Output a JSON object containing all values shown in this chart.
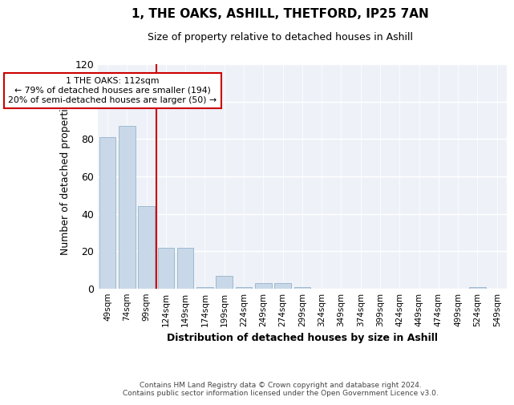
{
  "title": "1, THE OAKS, ASHILL, THETFORD, IP25 7AN",
  "subtitle": "Size of property relative to detached houses in Ashill",
  "xlabel": "Distribution of detached houses by size in Ashill",
  "ylabel": "Number of detached properties",
  "categories": [
    "49sqm",
    "74sqm",
    "99sqm",
    "124sqm",
    "149sqm",
    "174sqm",
    "199sqm",
    "224sqm",
    "249sqm",
    "274sqm",
    "299sqm",
    "324sqm",
    "349sqm",
    "374sqm",
    "399sqm",
    "424sqm",
    "449sqm",
    "474sqm",
    "499sqm",
    "524sqm",
    "549sqm"
  ],
  "values": [
    81,
    87,
    44,
    22,
    22,
    1,
    7,
    1,
    3,
    3,
    1,
    0,
    0,
    0,
    0,
    0,
    0,
    0,
    0,
    1,
    0
  ],
  "bar_color": "#c8d8e8",
  "bar_edge_color": "#a0b8d0",
  "bg_color": "#eef2f8",
  "grid_color": "#ffffff",
  "vline_x": 2.5,
  "vline_color": "#cc0000",
  "annotation_text": "1 THE OAKS: 112sqm\n← 79% of detached houses are smaller (194)\n20% of semi-detached houses are larger (50) →",
  "annotation_box_color": "#cc0000",
  "ylim": [
    0,
    120
  ],
  "yticks": [
    0,
    20,
    40,
    60,
    80,
    100,
    120
  ],
  "footer": "Contains HM Land Registry data © Crown copyright and database right 2024.\nContains public sector information licensed under the Open Government Licence v3.0."
}
